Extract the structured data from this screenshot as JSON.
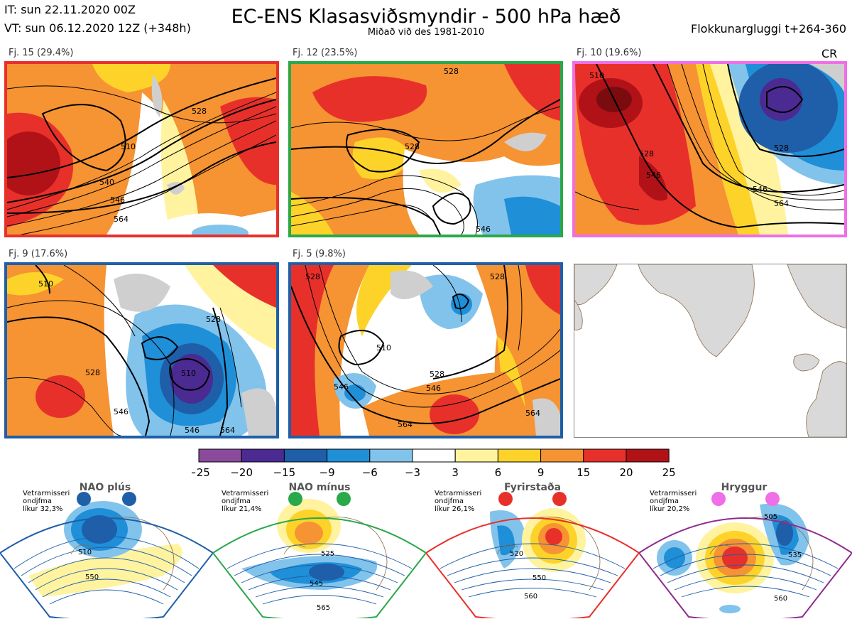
{
  "header": {
    "it": "IT: sun 22.11.2020 00Z",
    "vt": "VT: sun 06.12.2020 12Z  (+348h)",
    "title": "EC-ENS Klasasviðsmyndir - 500 hPa hæð",
    "subtitle": "Miðað við des 1981-2010",
    "window": "Flokkunargluggi t+264-360"
  },
  "panels": [
    {
      "label": "Fj. 15 (29.4%)",
      "border_color": "#e8302b",
      "contour_labels": [
        "510",
        "528",
        "546",
        "564",
        "540"
      ]
    },
    {
      "label": "Fj. 12 (23.5%)",
      "border_color": "#2aa84a",
      "contour_labels": [
        "528",
        "528",
        "546"
      ]
    },
    {
      "label": "Fj. 10 (19.6%)",
      "border_color": "#ee6fe8",
      "contour_labels": [
        "510",
        "528",
        "546",
        "528",
        "546",
        "564"
      ]
    },
    {
      "label": "Fj. 9 (17.6%)",
      "border_color": "#1f5fa8",
      "contour_labels": [
        "510",
        "528",
        "546",
        "510",
        "528",
        "546",
        "564"
      ]
    },
    {
      "label": "Fj. 5 (9.8%)",
      "border_color": "#1f5fa8",
      "contour_labels": [
        "528",
        "546",
        "510",
        "528",
        "546",
        "564",
        "564",
        "528"
      ]
    }
  ],
  "cr_label": "CR",
  "colorbar": {
    "ticks": [
      "−25",
      "−20",
      "−15",
      "−9",
      "−6",
      "−3",
      "3",
      "6",
      "9",
      "15",
      "20",
      "25"
    ],
    "colors": [
      "#8b4a9c",
      "#4b2a92",
      "#1f5ea8",
      "#1f8fd8",
      "#82c3ec",
      "#ffffff",
      "#fff3a0",
      "#fdd32a",
      "#f69332",
      "#e8302b",
      "#b01218"
    ]
  },
  "regimes": [
    {
      "title": "NAO plús",
      "color": "#1f5fa8",
      "note": [
        "Vetrarmisseri",
        "ondjfma",
        "líkur 32,3%"
      ],
      "contour_labels": [
        "510",
        "550"
      ]
    },
    {
      "title": "NAO mínus",
      "color": "#2aa84a",
      "note": [
        "Vetrarmisseri",
        "ondjfma",
        "líkur 21,4%"
      ],
      "contour_labels": [
        "525",
        "545",
        "565"
      ]
    },
    {
      "title": "Fyrirstaða",
      "color": "#e8302b",
      "note": [
        "Vetrarmisseri",
        "ondjfma",
        "líkur 26,1%"
      ],
      "contour_labels": [
        "520",
        "550",
        "560"
      ]
    },
    {
      "title": "Hryggur",
      "color": "#8e2c8f",
      "dot_color": "#ee6fe8",
      "note": [
        "Vetrarmisseri",
        "ondjfma",
        "líkur 20,2%"
      ],
      "contour_labels": [
        "505",
        "535",
        "560"
      ]
    }
  ]
}
